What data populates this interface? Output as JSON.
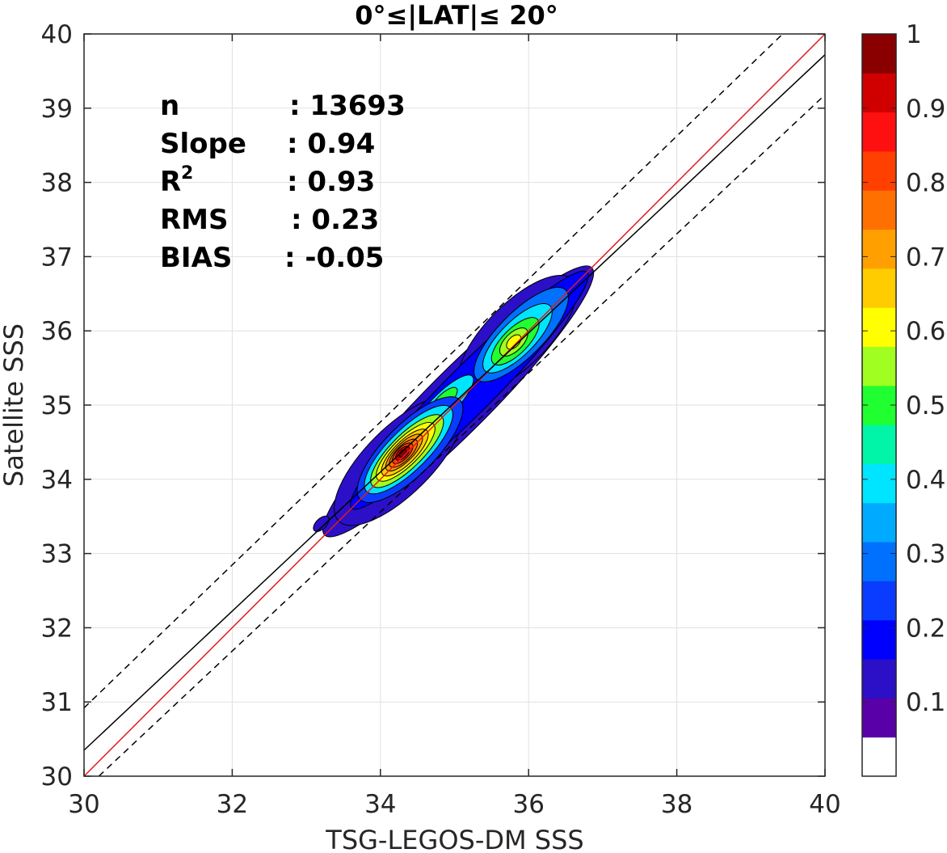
{
  "chart_data": {
    "type": "contour",
    "title": "0°≤|LAT|≤ 20°",
    "xlabel": "TSG-LEGOS-DM SSS",
    "ylabel": "Satellite SSS",
    "xlim": [
      30,
      40
    ],
    "ylim": [
      30,
      40
    ],
    "xticks": [
      30,
      32,
      34,
      36,
      38,
      40
    ],
    "yticks": [
      30,
      31,
      32,
      33,
      34,
      35,
      36,
      37,
      38,
      39,
      40
    ],
    "grid": true,
    "stats": [
      {
        "label": "n",
        "value": ": 13693"
      },
      {
        "label": "Slope",
        "value": ": 0.94"
      },
      {
        "label": "R",
        "sup": "2",
        "value": ": 0.93"
      },
      {
        "label": "RMS",
        "value": ": 0.23"
      },
      {
        "label": "BIAS",
        "value": ": -0.05"
      }
    ],
    "lines": [
      {
        "name": "one-to-one",
        "color": "#e41a1c",
        "style": "solid",
        "intercept": 0,
        "slope": 1
      },
      {
        "name": "regression",
        "color": "#000000",
        "style": "solid",
        "points": [
          [
            30,
            30.35
          ],
          [
            40,
            39.72
          ]
        ]
      },
      {
        "name": "upper-bound",
        "color": "#000000",
        "style": "dashed",
        "points": [
          [
            30,
            30.92
          ],
          [
            40,
            40.55
          ]
        ]
      },
      {
        "name": "lower-bound",
        "color": "#000000",
        "style": "dashed",
        "points": [
          [
            30.2,
            30
          ],
          [
            40,
            39.18
          ]
        ]
      }
    ],
    "density_peaks": [
      {
        "x": 34.3,
        "y": 34.35,
        "value": 1.0
      },
      {
        "x": 35.8,
        "y": 35.85,
        "value": 0.65
      },
      {
        "x": 34.85,
        "y": 35.05,
        "value": 0.42
      },
      {
        "x": 33.2,
        "y": 33.4,
        "value": 0.1
      }
    ],
    "colorbar": {
      "range": [
        0,
        1
      ],
      "ticks": [
        "0.1",
        "0.2",
        "0.3",
        "0.4",
        "0.5",
        "0.6",
        "0.7",
        "0.8",
        "0.9",
        "1"
      ],
      "colors": [
        "#ffffff",
        "#5a00a8",
        "#2b10c8",
        "#0000ff",
        "#0a3cff",
        "#0070ff",
        "#00aaff",
        "#00e5ff",
        "#00f5a8",
        "#20ff30",
        "#a0ff20",
        "#ffff00",
        "#ffcc00",
        "#ffa000",
        "#ff7000",
        "#ff4000",
        "#ff1010",
        "#d00000",
        "#8a0000"
      ]
    }
  }
}
